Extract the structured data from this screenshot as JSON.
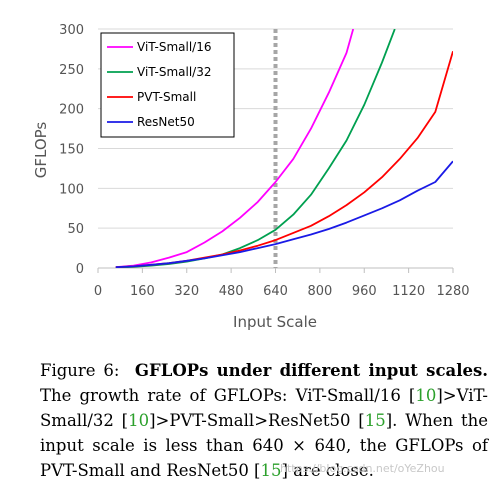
{
  "chart_data": {
    "type": "line",
    "title": "",
    "xlabel": "Input Scale",
    "ylabel": "GFLOPs",
    "xlim": [
      0,
      1280
    ],
    "ylim": [
      0,
      300
    ],
    "xticks": [
      0,
      160,
      320,
      480,
      640,
      800,
      960,
      1120,
      1280
    ],
    "yticks": [
      0,
      50,
      100,
      150,
      200,
      250,
      300
    ],
    "grid": "horizontal",
    "legend_position": "top-left",
    "reference_line": {
      "x": 640,
      "style": "dashed",
      "color": "#a6a6a6"
    },
    "series": [
      {
        "name": "ViT-Small/16",
        "color": "#ff00ff",
        "x": [
          64,
          128,
          192,
          256,
          320,
          384,
          448,
          512,
          576,
          640,
          704,
          768,
          832,
          896,
          920
        ],
        "y": [
          1,
          3,
          7,
          13,
          20,
          32,
          46,
          63,
          83,
          108,
          137,
          175,
          220,
          270,
          300
        ]
      },
      {
        "name": "ViT-Small/32",
        "color": "#00a050",
        "x": [
          64,
          128,
          192,
          256,
          320,
          384,
          448,
          512,
          576,
          640,
          704,
          768,
          832,
          896,
          960,
          1024,
          1070
        ],
        "y": [
          0.5,
          1.5,
          3,
          5,
          8,
          12,
          17,
          25,
          35,
          48,
          67,
          92,
          125,
          160,
          205,
          258,
          300
        ]
      },
      {
        "name": "PVT-Small",
        "color": "#ff0000",
        "x": [
          64,
          128,
          192,
          256,
          320,
          384,
          448,
          512,
          576,
          640,
          704,
          768,
          832,
          896,
          960,
          1024,
          1088,
          1152,
          1216,
          1280
        ],
        "y": [
          1,
          2,
          4,
          6,
          9,
          13,
          17,
          22,
          28,
          35,
          44,
          53,
          65,
          79,
          95,
          114,
          137,
          163,
          196,
          272
        ]
      },
      {
        "name": "ResNet50",
        "color": "#1a1ae6",
        "x": [
          64,
          128,
          192,
          256,
          320,
          384,
          448,
          512,
          576,
          640,
          704,
          768,
          832,
          896,
          960,
          1024,
          1088,
          1152,
          1216,
          1280
        ],
        "y": [
          1,
          2,
          4,
          6,
          9,
          12,
          16,
          20,
          25,
          30,
          36,
          42,
          49,
          57,
          66,
          75,
          85,
          97,
          108,
          134
        ]
      }
    ]
  },
  "caption": {
    "label": "Figure 6:",
    "bold_title": "GFLOPs under different input scales.",
    "t1": "The growth rate of GFLOPs: ViT-Small/16 [",
    "r1": "10",
    "t2": "]>ViT-Small/32 [",
    "r2": "10",
    "t3": "]>PVT-Small>ResNet50 [",
    "r3": "15",
    "t4": "]. When the input scale is less than 640 × 640, the GFLOPs of PVT-Small and ResNet50 [",
    "r4": "15",
    "t5": "] are close."
  },
  "watermark": "https://blog.csdn.net/oYeZhou"
}
